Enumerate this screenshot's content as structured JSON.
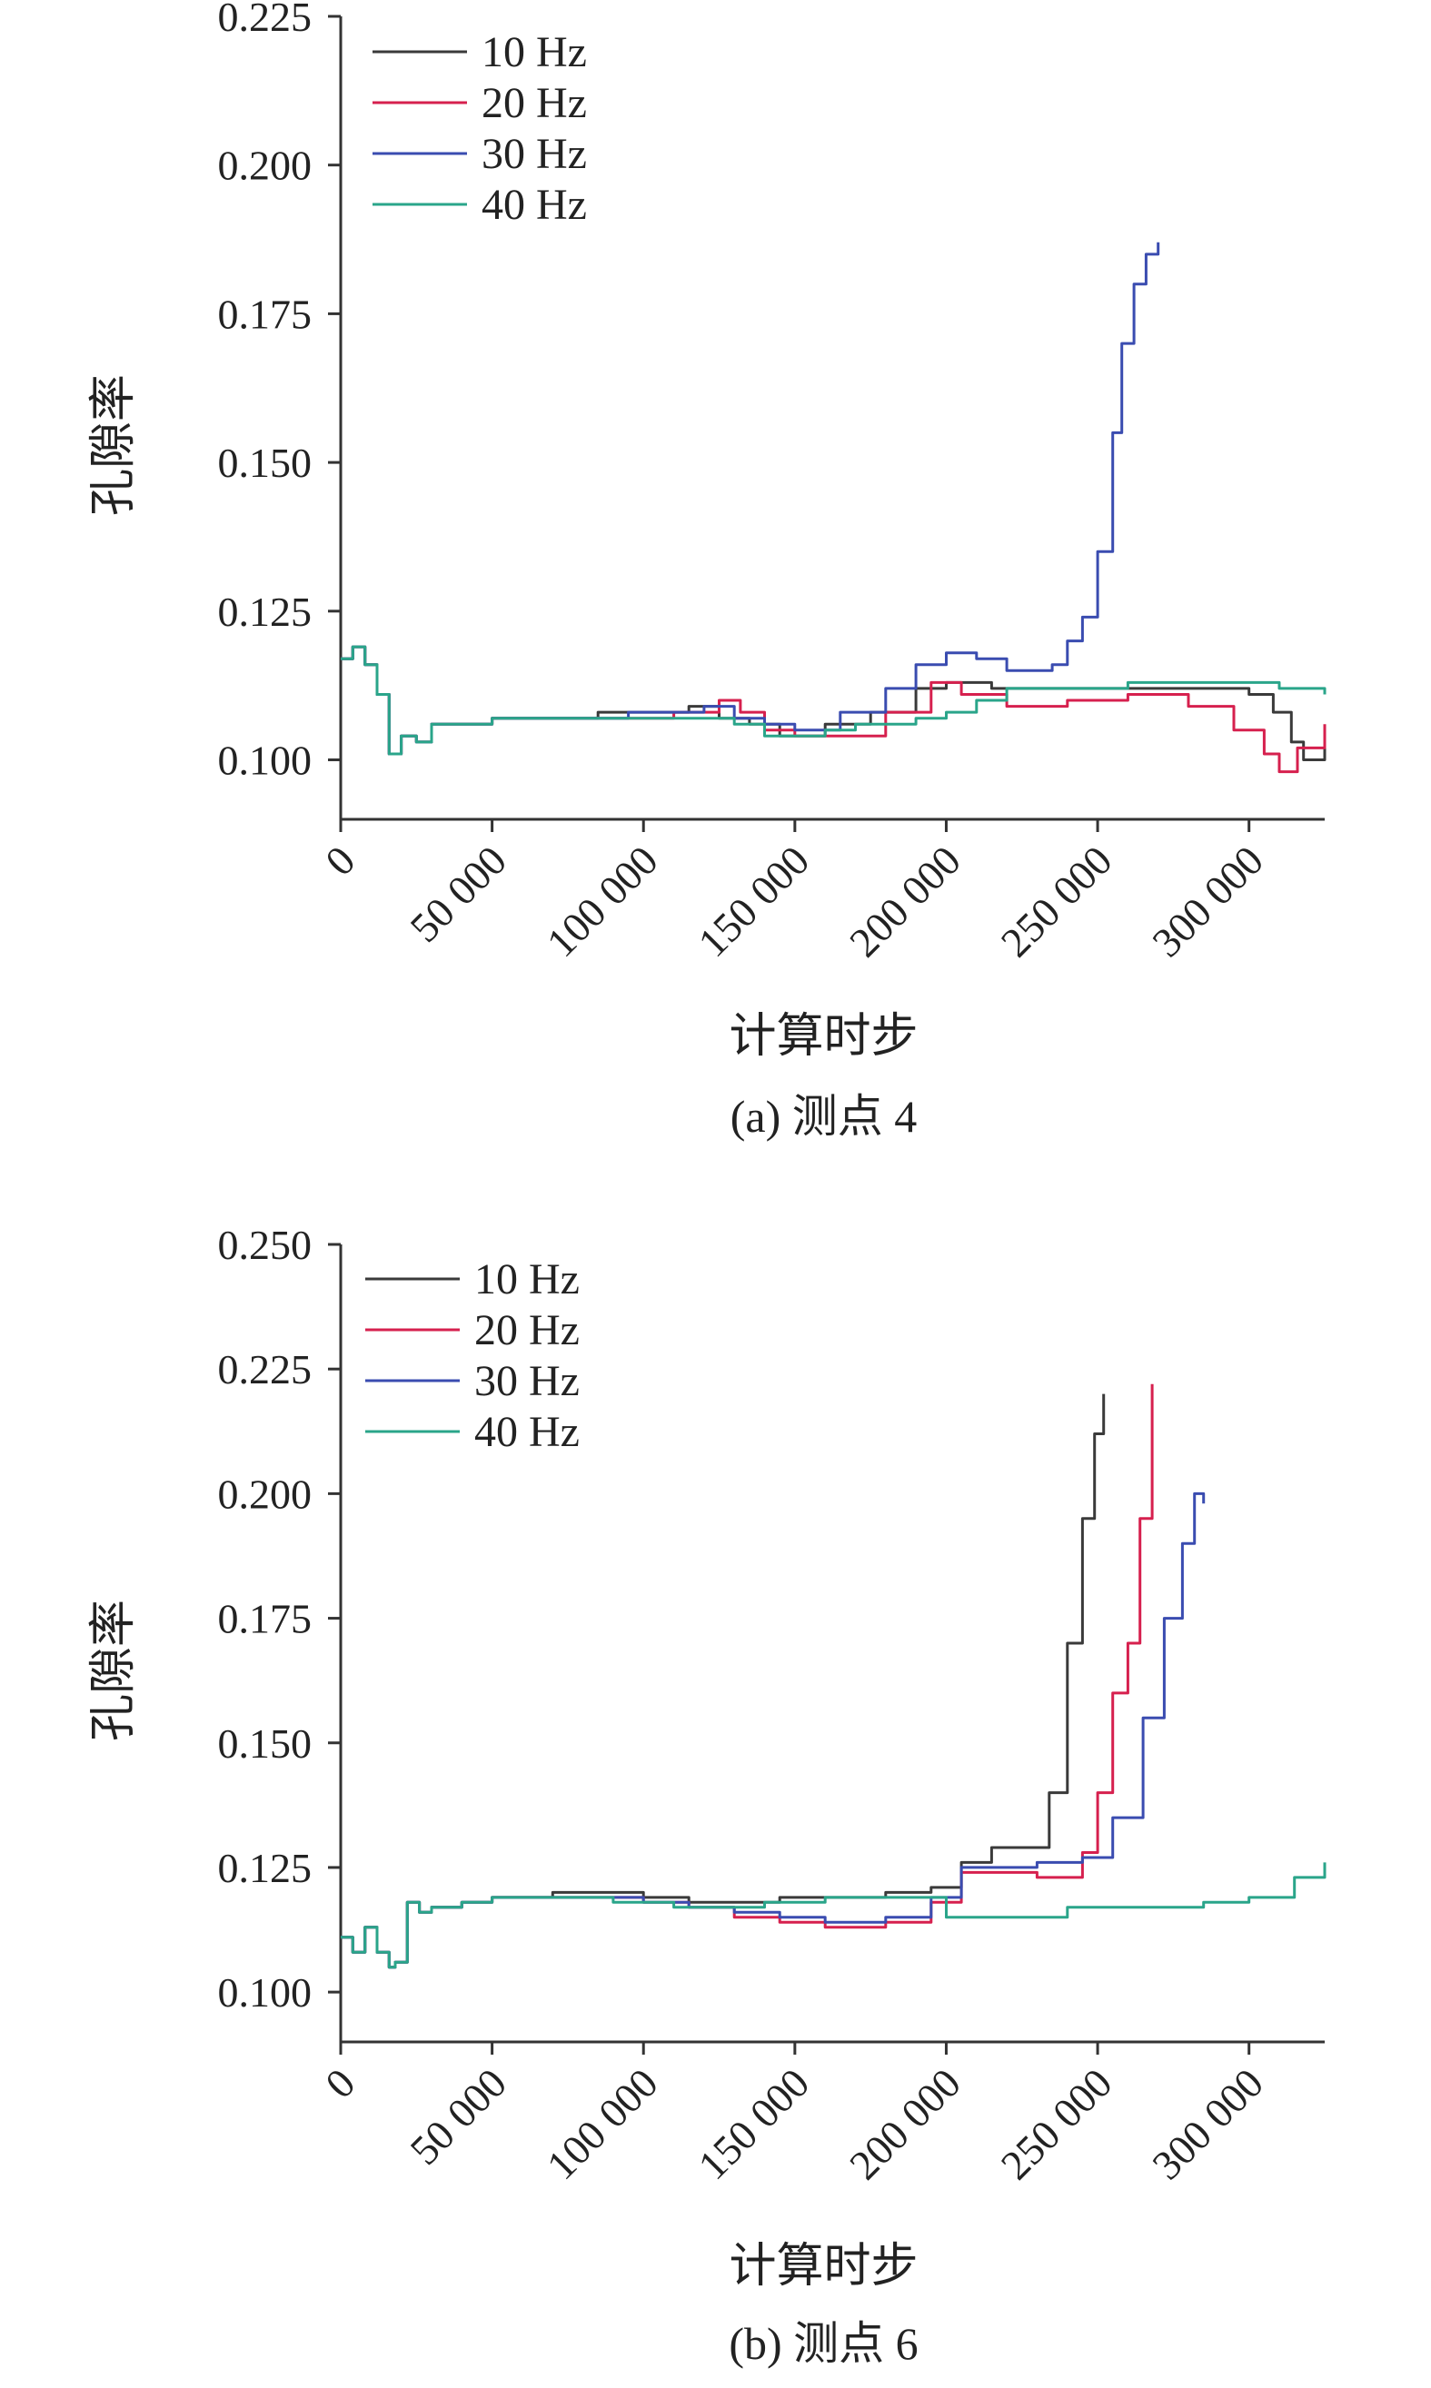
{
  "figure": {
    "colors": {
      "axis": "#333333",
      "text": "#222222",
      "background": "#ffffff"
    }
  },
  "chart_data": [
    {
      "type": "line",
      "panel_id": "a",
      "caption": "(a) 测点 4",
      "xlabel": "计算时步",
      "ylabel": "孔隙率",
      "xlim": [
        0,
        325000
      ],
      "ylim": [
        0.09,
        0.225
      ],
      "xticks": [
        0,
        50000,
        100000,
        150000,
        200000,
        250000,
        300000
      ],
      "xtick_labels": [
        "0",
        "50 000",
        "100 000",
        "150 000",
        "200 000",
        "250 000",
        "300 000"
      ],
      "yticks": [
        0.1,
        0.125,
        0.15,
        0.175,
        0.2,
        0.225
      ],
      "ytick_labels": [
        "0.100",
        "0.125",
        "0.150",
        "0.175",
        "0.200",
        "0.225"
      ],
      "legend_position": "top-left",
      "grid": false,
      "series": [
        {
          "name": "10 Hz",
          "color": "#3a3a3a",
          "x": [
            0,
            4000,
            8000,
            12000,
            16000,
            20000,
            25000,
            30000,
            40000,
            50000,
            75000,
            85000,
            100000,
            115000,
            125000,
            135000,
            145000,
            160000,
            175000,
            190000,
            200000,
            215000,
            230000,
            250000,
            270000,
            290000,
            300000,
            308000,
            314000,
            318000,
            325000
          ],
          "y": [
            0.117,
            0.119,
            0.116,
            0.111,
            0.101,
            0.104,
            0.103,
            0.106,
            0.106,
            0.107,
            0.107,
            0.108,
            0.108,
            0.109,
            0.107,
            0.106,
            0.104,
            0.106,
            0.108,
            0.112,
            0.113,
            0.112,
            0.112,
            0.112,
            0.112,
            0.112,
            0.111,
            0.108,
            0.103,
            0.1,
            0.102
          ]
        },
        {
          "name": "20 Hz",
          "color": "#d6204e",
          "x": [
            0,
            4000,
            8000,
            12000,
            16000,
            20000,
            25000,
            30000,
            40000,
            50000,
            75000,
            90000,
            110000,
            125000,
            132000,
            140000,
            150000,
            165000,
            180000,
            195000,
            205000,
            220000,
            240000,
            260000,
            280000,
            295000,
            305000,
            310000,
            316000,
            325000
          ],
          "y": [
            0.117,
            0.119,
            0.116,
            0.111,
            0.101,
            0.104,
            0.103,
            0.106,
            0.106,
            0.107,
            0.107,
            0.107,
            0.108,
            0.11,
            0.108,
            0.105,
            0.104,
            0.104,
            0.108,
            0.113,
            0.111,
            0.109,
            0.11,
            0.111,
            0.109,
            0.105,
            0.101,
            0.098,
            0.102,
            0.106
          ]
        },
        {
          "name": "30 Hz",
          "color": "#3a4cb0",
          "x": [
            0,
            4000,
            8000,
            12000,
            16000,
            20000,
            25000,
            30000,
            40000,
            50000,
            75000,
            95000,
            110000,
            120000,
            130000,
            140000,
            150000,
            165000,
            180000,
            190000,
            200000,
            210000,
            220000,
            230000,
            235000,
            240000,
            245000,
            250000,
            255000,
            258000,
            262000,
            266000,
            270000
          ],
          "y": [
            0.117,
            0.119,
            0.116,
            0.111,
            0.101,
            0.104,
            0.103,
            0.106,
            0.106,
            0.107,
            0.107,
            0.108,
            0.108,
            0.109,
            0.107,
            0.106,
            0.105,
            0.108,
            0.112,
            0.116,
            0.118,
            0.117,
            0.115,
            0.115,
            0.116,
            0.12,
            0.124,
            0.135,
            0.155,
            0.17,
            0.18,
            0.185,
            0.187
          ]
        },
        {
          "name": "40 Hz",
          "color": "#2aa58a",
          "x": [
            0,
            4000,
            8000,
            12000,
            16000,
            20000,
            25000,
            30000,
            40000,
            50000,
            75000,
            100000,
            120000,
            130000,
            140000,
            150000,
            160000,
            170000,
            180000,
            190000,
            200000,
            210000,
            220000,
            240000,
            260000,
            280000,
            300000,
            310000,
            325000
          ],
          "y": [
            0.117,
            0.119,
            0.116,
            0.111,
            0.101,
            0.104,
            0.103,
            0.106,
            0.106,
            0.107,
            0.107,
            0.107,
            0.107,
            0.106,
            0.104,
            0.104,
            0.105,
            0.106,
            0.106,
            0.107,
            0.108,
            0.11,
            0.112,
            0.112,
            0.113,
            0.113,
            0.113,
            0.112,
            0.111
          ]
        }
      ]
    },
    {
      "type": "line",
      "panel_id": "b",
      "caption": "(b) 测点 6",
      "xlabel": "计算时步",
      "ylabel": "孔隙率",
      "xlim": [
        0,
        325000
      ],
      "ylim": [
        0.09,
        0.25
      ],
      "xticks": [
        0,
        50000,
        100000,
        150000,
        200000,
        250000,
        300000
      ],
      "xtick_labels": [
        "0",
        "50 000",
        "100 000",
        "150 000",
        "200 000",
        "250 000",
        "300 000"
      ],
      "yticks": [
        0.1,
        0.125,
        0.15,
        0.175,
        0.2,
        0.225,
        0.25
      ],
      "ytick_labels": [
        "0.100",
        "0.125",
        "0.150",
        "0.175",
        "0.200",
        "0.225",
        "0.250"
      ],
      "legend_position": "top-left",
      "grid": false,
      "series": [
        {
          "name": "10 Hz",
          "color": "#3a3a3a",
          "x": [
            0,
            4000,
            8000,
            12000,
            16000,
            18000,
            22000,
            26000,
            30000,
            40000,
            50000,
            70000,
            90000,
            100000,
            115000,
            130000,
            145000,
            160000,
            180000,
            195000,
            205000,
            215000,
            230000,
            234000,
            240000,
            245000,
            249000,
            252000
          ],
          "y": [
            0.111,
            0.108,
            0.113,
            0.108,
            0.105,
            0.106,
            0.118,
            0.116,
            0.117,
            0.118,
            0.119,
            0.12,
            0.12,
            0.119,
            0.118,
            0.118,
            0.119,
            0.119,
            0.12,
            0.121,
            0.126,
            0.129,
            0.129,
            0.14,
            0.17,
            0.195,
            0.212,
            0.22
          ]
        },
        {
          "name": "20 Hz",
          "color": "#d6204e",
          "x": [
            0,
            4000,
            8000,
            12000,
            16000,
            18000,
            22000,
            26000,
            30000,
            40000,
            50000,
            70000,
            90000,
            100000,
            115000,
            130000,
            145000,
            160000,
            180000,
            195000,
            205000,
            215000,
            230000,
            245000,
            250000,
            255000,
            260000,
            264000,
            268000
          ],
          "y": [
            0.111,
            0.108,
            0.113,
            0.108,
            0.105,
            0.106,
            0.118,
            0.116,
            0.117,
            0.118,
            0.119,
            0.119,
            0.119,
            0.118,
            0.117,
            0.115,
            0.114,
            0.113,
            0.114,
            0.118,
            0.124,
            0.124,
            0.123,
            0.128,
            0.14,
            0.16,
            0.17,
            0.195,
            0.222
          ]
        },
        {
          "name": "30 Hz",
          "color": "#3a4cb0",
          "x": [
            0,
            4000,
            8000,
            12000,
            16000,
            18000,
            22000,
            26000,
            30000,
            40000,
            50000,
            70000,
            90000,
            100000,
            115000,
            130000,
            145000,
            160000,
            180000,
            195000,
            205000,
            215000,
            230000,
            245000,
            255000,
            265000,
            272000,
            278000,
            282000,
            285000
          ],
          "y": [
            0.111,
            0.108,
            0.113,
            0.108,
            0.105,
            0.106,
            0.118,
            0.116,
            0.117,
            0.118,
            0.119,
            0.119,
            0.119,
            0.118,
            0.117,
            0.116,
            0.115,
            0.114,
            0.115,
            0.119,
            0.125,
            0.125,
            0.126,
            0.127,
            0.135,
            0.155,
            0.175,
            0.19,
            0.2,
            0.198
          ]
        },
        {
          "name": "40 Hz",
          "color": "#2aa58a",
          "x": [
            0,
            4000,
            8000,
            12000,
            16000,
            18000,
            22000,
            26000,
            30000,
            40000,
            50000,
            70000,
            90000,
            100000,
            110000,
            125000,
            140000,
            160000,
            180000,
            195000,
            200000,
            215000,
            240000,
            260000,
            285000,
            300000,
            315000,
            325000
          ],
          "y": [
            0.111,
            0.108,
            0.113,
            0.108,
            0.105,
            0.106,
            0.118,
            0.116,
            0.117,
            0.118,
            0.119,
            0.119,
            0.118,
            0.118,
            0.117,
            0.117,
            0.118,
            0.119,
            0.119,
            0.119,
            0.115,
            0.115,
            0.117,
            0.117,
            0.118,
            0.119,
            0.123,
            0.126
          ]
        }
      ]
    }
  ]
}
